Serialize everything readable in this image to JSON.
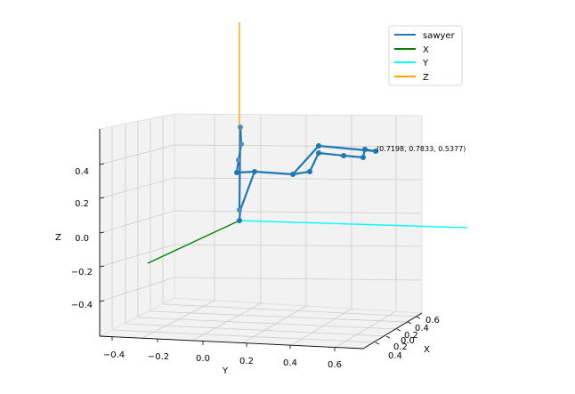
{
  "chart_data": {
    "type": "line",
    "subtype": "3d-line",
    "title": "",
    "xlabel": "X",
    "ylabel": "Y",
    "zlabel": "Z",
    "x_ticks": [
      "0.6",
      "0.4",
      "0.2",
      "0.0",
      "0.2",
      "0.4"
    ],
    "y_ticks": [
      "−0.4",
      "−0.2",
      "0.0",
      "0.2",
      "0.4",
      "0.6"
    ],
    "z_ticks": [
      "0.4",
      "0.2",
      "0.0",
      "−0.2",
      "−0.4"
    ],
    "annotation": "(0.7198, 0.7833, 0.5377)",
    "legend": {
      "placement": "top-right",
      "entries": [
        {
          "label": "sawyer",
          "color": "#1f77b4"
        },
        {
          "label": "X",
          "color": "#008000"
        },
        {
          "label": "Y",
          "color": "#00ffff"
        },
        {
          "label": "Z",
          "color": "#ffa500"
        }
      ]
    },
    "grid": true
  }
}
